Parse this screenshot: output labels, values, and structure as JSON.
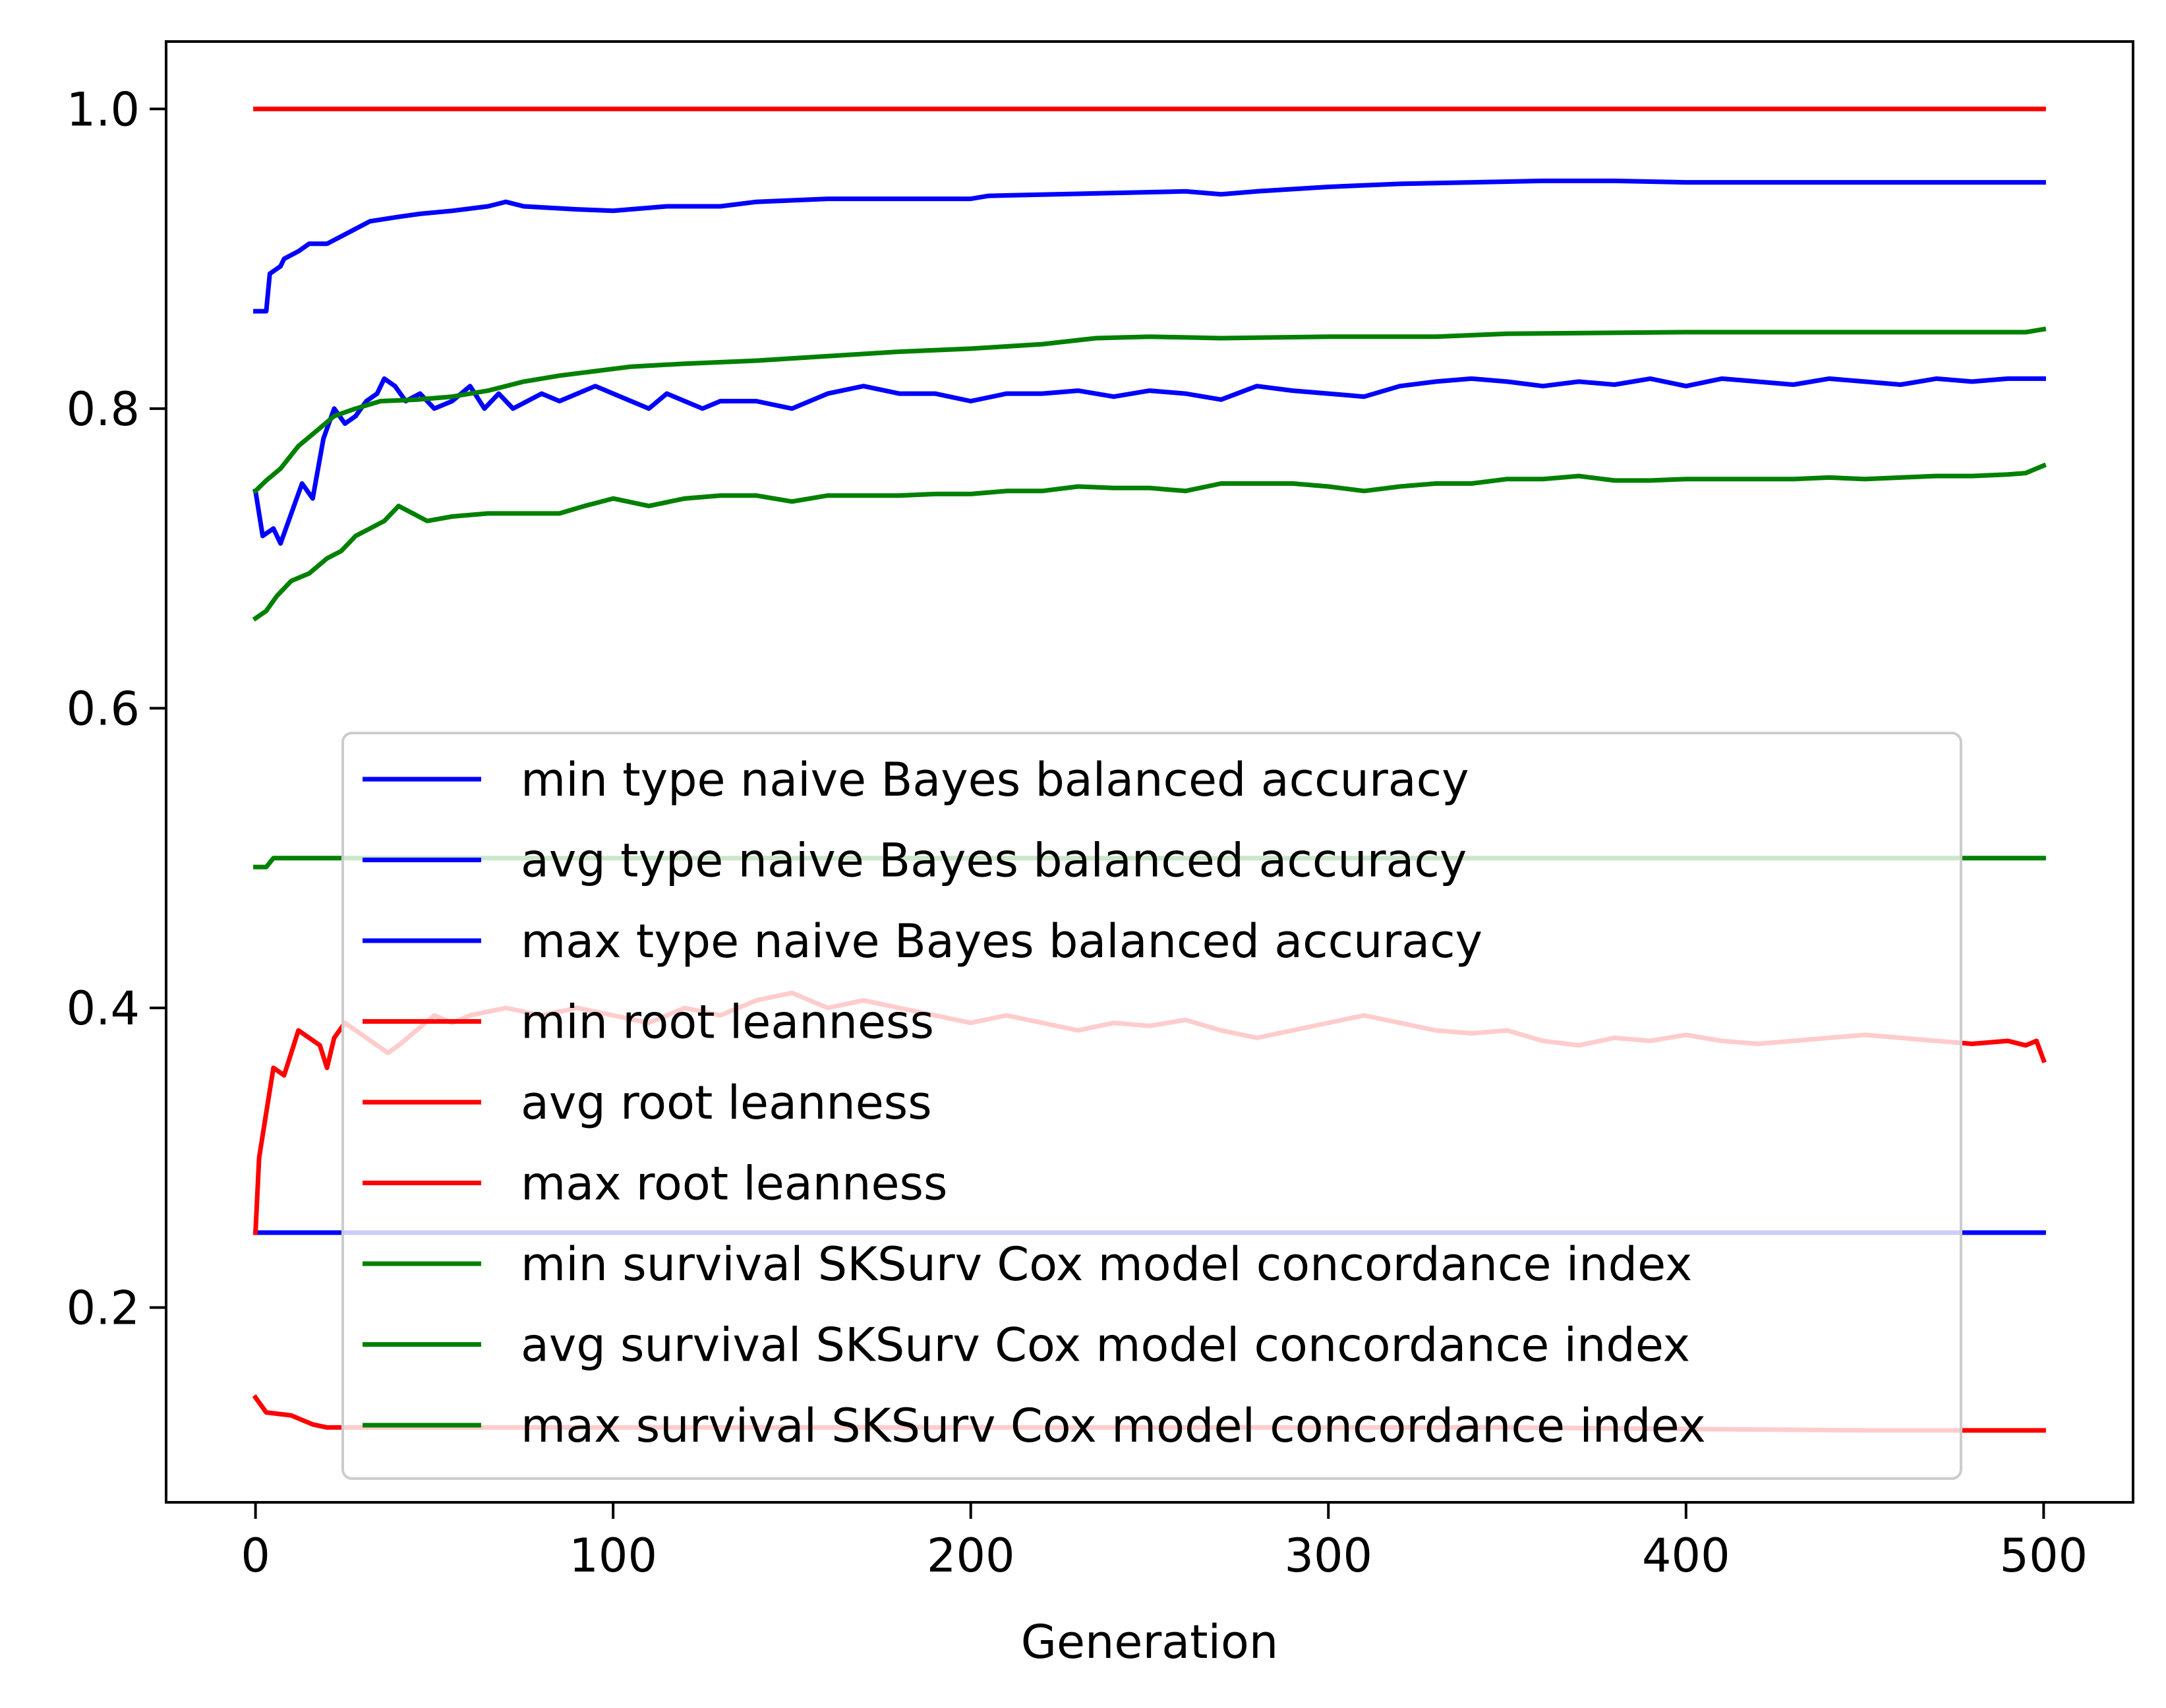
{
  "chart_data": {
    "type": "line",
    "title": "",
    "xlabel": "Generation",
    "ylabel": "",
    "xlim": [
      -25,
      525
    ],
    "ylim": [
      0.07,
      1.045
    ],
    "x_ticks": [
      0,
      100,
      200,
      300,
      400,
      500
    ],
    "y_ticks": [
      0.2,
      0.4,
      0.6,
      0.8,
      1.0
    ],
    "x_tick_labels": [
      "0",
      "100",
      "200",
      "300",
      "400",
      "500"
    ],
    "y_tick_labels": [
      "0.2",
      "0.4",
      "0.6",
      "0.8",
      "1.0"
    ],
    "grid": false,
    "legend_position": "lower-center",
    "series": [
      {
        "name": "min type naive Bayes balanced accuracy",
        "color": "#0000ff",
        "points": [
          [
            0,
            0.25
          ],
          [
            500,
            0.25
          ]
        ]
      },
      {
        "name": "avg type naive Bayes balanced accuracy",
        "color": "#0000ff",
        "points": [
          [
            0,
            0.745
          ],
          [
            2,
            0.715
          ],
          [
            5,
            0.72
          ],
          [
            7,
            0.71
          ],
          [
            10,
            0.73
          ],
          [
            13,
            0.75
          ],
          [
            16,
            0.74
          ],
          [
            19,
            0.78
          ],
          [
            22,
            0.8
          ],
          [
            25,
            0.79
          ],
          [
            28,
            0.795
          ],
          [
            31,
            0.805
          ],
          [
            34,
            0.81
          ],
          [
            36,
            0.82
          ],
          [
            39,
            0.815
          ],
          [
            42,
            0.805
          ],
          [
            46,
            0.81
          ],
          [
            50,
            0.8
          ],
          [
            55,
            0.805
          ],
          [
            60,
            0.815
          ],
          [
            64,
            0.8
          ],
          [
            68,
            0.81
          ],
          [
            72,
            0.8
          ],
          [
            76,
            0.805
          ],
          [
            80,
            0.81
          ],
          [
            85,
            0.805
          ],
          [
            90,
            0.81
          ],
          [
            95,
            0.815
          ],
          [
            100,
            0.81
          ],
          [
            105,
            0.805
          ],
          [
            110,
            0.8
          ],
          [
            115,
            0.81
          ],
          [
            120,
            0.805
          ],
          [
            125,
            0.8
          ],
          [
            130,
            0.805
          ],
          [
            140,
            0.805
          ],
          [
            150,
            0.8
          ],
          [
            160,
            0.81
          ],
          [
            170,
            0.815
          ],
          [
            180,
            0.81
          ],
          [
            190,
            0.81
          ],
          [
            200,
            0.805
          ],
          [
            210,
            0.81
          ],
          [
            220,
            0.81
          ],
          [
            230,
            0.812
          ],
          [
            240,
            0.808
          ],
          [
            250,
            0.812
          ],
          [
            260,
            0.81
          ],
          [
            270,
            0.806
          ],
          [
            280,
            0.815
          ],
          [
            290,
            0.812
          ],
          [
            300,
            0.81
          ],
          [
            310,
            0.808
          ],
          [
            320,
            0.815
          ],
          [
            330,
            0.818
          ],
          [
            340,
            0.82
          ],
          [
            350,
            0.818
          ],
          [
            360,
            0.815
          ],
          [
            370,
            0.818
          ],
          [
            380,
            0.816
          ],
          [
            390,
            0.82
          ],
          [
            400,
            0.815
          ],
          [
            410,
            0.82
          ],
          [
            420,
            0.818
          ],
          [
            430,
            0.816
          ],
          [
            440,
            0.82
          ],
          [
            450,
            0.818
          ],
          [
            460,
            0.816
          ],
          [
            470,
            0.82
          ],
          [
            480,
            0.818
          ],
          [
            490,
            0.82
          ],
          [
            500,
            0.82
          ]
        ]
      },
      {
        "name": "max type naive Bayes balanced accuracy",
        "color": "#0000ff",
        "points": [
          [
            0,
            0.865
          ],
          [
            3,
            0.865
          ],
          [
            4,
            0.89
          ],
          [
            7,
            0.895
          ],
          [
            8,
            0.9
          ],
          [
            12,
            0.905
          ],
          [
            15,
            0.91
          ],
          [
            20,
            0.91
          ],
          [
            24,
            0.915
          ],
          [
            28,
            0.92
          ],
          [
            32,
            0.925
          ],
          [
            40,
            0.928
          ],
          [
            46,
            0.93
          ],
          [
            55,
            0.932
          ],
          [
            65,
            0.935
          ],
          [
            70,
            0.938
          ],
          [
            75,
            0.935
          ],
          [
            90,
            0.933
          ],
          [
            100,
            0.932
          ],
          [
            115,
            0.935
          ],
          [
            130,
            0.935
          ],
          [
            140,
            0.938
          ],
          [
            160,
            0.94
          ],
          [
            200,
            0.94
          ],
          [
            205,
            0.942
          ],
          [
            260,
            0.945
          ],
          [
            270,
            0.943
          ],
          [
            280,
            0.945
          ],
          [
            300,
            0.948
          ],
          [
            320,
            0.95
          ],
          [
            360,
            0.952
          ],
          [
            380,
            0.952
          ],
          [
            400,
            0.951
          ],
          [
            450,
            0.951
          ],
          [
            500,
            0.951
          ]
        ]
      },
      {
        "name": "min root leanness",
        "color": "#ff0000",
        "points": [
          [
            0,
            0.14
          ],
          [
            3,
            0.13
          ],
          [
            10,
            0.128
          ],
          [
            16,
            0.122
          ],
          [
            20,
            0.12
          ],
          [
            30,
            0.12
          ],
          [
            50,
            0.12
          ],
          [
            80,
            0.12
          ],
          [
            150,
            0.12
          ],
          [
            250,
            0.12
          ],
          [
            350,
            0.12
          ],
          [
            450,
            0.118
          ],
          [
            500,
            0.118
          ]
        ]
      },
      {
        "name": "avg root leanness",
        "color": "#ff0000",
        "points": [
          [
            0,
            0.25
          ],
          [
            1,
            0.3
          ],
          [
            3,
            0.33
          ],
          [
            5,
            0.36
          ],
          [
            8,
            0.355
          ],
          [
            10,
            0.37
          ],
          [
            12,
            0.385
          ],
          [
            15,
            0.38
          ],
          [
            18,
            0.375
          ],
          [
            20,
            0.36
          ],
          [
            22,
            0.38
          ],
          [
            25,
            0.39
          ],
          [
            28,
            0.385
          ],
          [
            31,
            0.38
          ],
          [
            34,
            0.375
          ],
          [
            37,
            0.37
          ],
          [
            40,
            0.375
          ],
          [
            45,
            0.385
          ],
          [
            50,
            0.395
          ],
          [
            55,
            0.39
          ],
          [
            60,
            0.395
          ],
          [
            70,
            0.4
          ],
          [
            80,
            0.395
          ],
          [
            90,
            0.4
          ],
          [
            100,
            0.395
          ],
          [
            110,
            0.39
          ],
          [
            120,
            0.4
          ],
          [
            130,
            0.395
          ],
          [
            140,
            0.405
          ],
          [
            150,
            0.41
          ],
          [
            160,
            0.4
          ],
          [
            170,
            0.405
          ],
          [
            180,
            0.4
          ],
          [
            190,
            0.395
          ],
          [
            200,
            0.39
          ],
          [
            210,
            0.395
          ],
          [
            220,
            0.39
          ],
          [
            230,
            0.385
          ],
          [
            240,
            0.39
          ],
          [
            250,
            0.388
          ],
          [
            260,
            0.392
          ],
          [
            270,
            0.385
          ],
          [
            280,
            0.38
          ],
          [
            290,
            0.385
          ],
          [
            300,
            0.39
          ],
          [
            310,
            0.395
          ],
          [
            320,
            0.39
          ],
          [
            330,
            0.385
          ],
          [
            340,
            0.383
          ],
          [
            350,
            0.385
          ],
          [
            360,
            0.378
          ],
          [
            370,
            0.375
          ],
          [
            380,
            0.38
          ],
          [
            390,
            0.378
          ],
          [
            400,
            0.382
          ],
          [
            410,
            0.378
          ],
          [
            420,
            0.376
          ],
          [
            430,
            0.378
          ],
          [
            440,
            0.38
          ],
          [
            450,
            0.382
          ],
          [
            460,
            0.38
          ],
          [
            470,
            0.378
          ],
          [
            480,
            0.376
          ],
          [
            490,
            0.378
          ],
          [
            495,
            0.375
          ],
          [
            498,
            0.378
          ],
          [
            500,
            0.365
          ]
        ]
      },
      {
        "name": "max root leanness",
        "color": "#ff0000",
        "points": [
          [
            0,
            1.0
          ],
          [
            500,
            1.0
          ]
        ]
      },
      {
        "name": "min survival SKSurv Cox model concordance index",
        "color": "#008000",
        "points": [
          [
            0,
            0.494
          ],
          [
            3,
            0.494
          ],
          [
            5,
            0.5
          ],
          [
            100,
            0.5
          ],
          [
            500,
            0.5
          ]
        ]
      },
      {
        "name": "avg survival SKSurv Cox model concordance index",
        "color": "#008000",
        "points": [
          [
            0,
            0.66
          ],
          [
            3,
            0.665
          ],
          [
            6,
            0.675
          ],
          [
            10,
            0.685
          ],
          [
            15,
            0.69
          ],
          [
            20,
            0.7
          ],
          [
            24,
            0.705
          ],
          [
            28,
            0.715
          ],
          [
            32,
            0.72
          ],
          [
            36,
            0.725
          ],
          [
            40,
            0.735
          ],
          [
            44,
            0.73
          ],
          [
            48,
            0.725
          ],
          [
            55,
            0.728
          ],
          [
            65,
            0.73
          ],
          [
            75,
            0.73
          ],
          [
            85,
            0.73
          ],
          [
            92,
            0.735
          ],
          [
            100,
            0.74
          ],
          [
            110,
            0.735
          ],
          [
            120,
            0.74
          ],
          [
            130,
            0.742
          ],
          [
            140,
            0.742
          ],
          [
            150,
            0.738
          ],
          [
            160,
            0.742
          ],
          [
            170,
            0.742
          ],
          [
            180,
            0.742
          ],
          [
            190,
            0.743
          ],
          [
            200,
            0.743
          ],
          [
            210,
            0.745
          ],
          [
            220,
            0.745
          ],
          [
            230,
            0.748
          ],
          [
            240,
            0.747
          ],
          [
            250,
            0.747
          ],
          [
            260,
            0.745
          ],
          [
            270,
            0.75
          ],
          [
            280,
            0.75
          ],
          [
            290,
            0.75
          ],
          [
            300,
            0.748
          ],
          [
            310,
            0.745
          ],
          [
            320,
            0.748
          ],
          [
            330,
            0.75
          ],
          [
            340,
            0.75
          ],
          [
            350,
            0.753
          ],
          [
            360,
            0.753
          ],
          [
            370,
            0.755
          ],
          [
            380,
            0.752
          ],
          [
            390,
            0.752
          ],
          [
            400,
            0.753
          ],
          [
            410,
            0.753
          ],
          [
            420,
            0.753
          ],
          [
            430,
            0.753
          ],
          [
            440,
            0.754
          ],
          [
            450,
            0.753
          ],
          [
            460,
            0.754
          ],
          [
            470,
            0.755
          ],
          [
            480,
            0.755
          ],
          [
            490,
            0.756
          ],
          [
            495,
            0.757
          ],
          [
            500,
            0.762
          ]
        ]
      },
      {
        "name": "max survival SKSurv Cox model concordance index",
        "color": "#008000",
        "points": [
          [
            0,
            0.745
          ],
          [
            3,
            0.752
          ],
          [
            7,
            0.76
          ],
          [
            12,
            0.775
          ],
          [
            17,
            0.785
          ],
          [
            22,
            0.795
          ],
          [
            28,
            0.8
          ],
          [
            35,
            0.805
          ],
          [
            45,
            0.806
          ],
          [
            55,
            0.808
          ],
          [
            65,
            0.812
          ],
          [
            75,
            0.818
          ],
          [
            85,
            0.822
          ],
          [
            95,
            0.825
          ],
          [
            105,
            0.828
          ],
          [
            120,
            0.83
          ],
          [
            140,
            0.832
          ],
          [
            160,
            0.835
          ],
          [
            180,
            0.838
          ],
          [
            200,
            0.84
          ],
          [
            220,
            0.843
          ],
          [
            235,
            0.847
          ],
          [
            250,
            0.848
          ],
          [
            270,
            0.847
          ],
          [
            300,
            0.848
          ],
          [
            330,
            0.848
          ],
          [
            350,
            0.85
          ],
          [
            400,
            0.851
          ],
          [
            450,
            0.851
          ],
          [
            495,
            0.851
          ],
          [
            500,
            0.853
          ]
        ]
      }
    ]
  }
}
